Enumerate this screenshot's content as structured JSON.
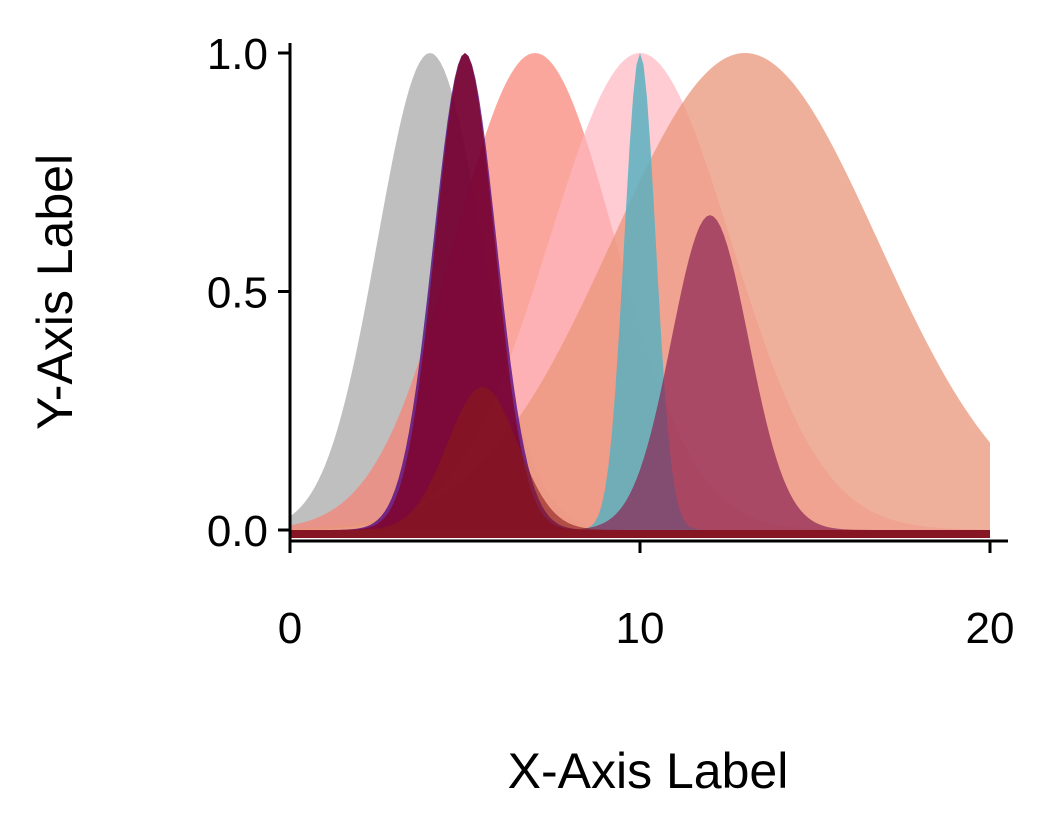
{
  "chart_data": {
    "type": "area",
    "title": "",
    "xlabel": "X-Axis Label",
    "ylabel": "Y-Axis Label",
    "xlim": [
      0,
      20
    ],
    "ylim": [
      0,
      1
    ],
    "x_ticks": [
      {
        "value": 0,
        "label": "0"
      },
      {
        "value": 10,
        "label": "10"
      },
      {
        "value": 20,
        "label": "20"
      }
    ],
    "y_ticks": [
      {
        "value": 0.0,
        "label": "0.0"
      },
      {
        "value": 0.5,
        "label": "0.5"
      },
      {
        "value": 1.0,
        "label": "1.0"
      }
    ],
    "grid": false,
    "legend": "none",
    "series": [
      {
        "shape": "gaussian",
        "mu": 4,
        "sigma": 1.5,
        "amplitude": 1.0,
        "color": "#a9a9a9",
        "opacity": 0.75
      },
      {
        "shape": "gaussian",
        "mu": 7,
        "sigma": 2.3,
        "amplitude": 1.0,
        "color": "#fa8072",
        "opacity": 0.7
      },
      {
        "shape": "gaussian",
        "mu": 10,
        "sigma": 2.6,
        "amplitude": 1.0,
        "color": "#ffb6c1",
        "opacity": 0.7
      },
      {
        "shape": "gaussian",
        "mu": 13,
        "sigma": 3.8,
        "amplitude": 1.0,
        "color": "#e9967a",
        "opacity": 0.75
      },
      {
        "shape": "gaussian",
        "mu": 5,
        "sigma": 0.9,
        "amplitude": 1.0,
        "color": "#4b0082",
        "opacity": 0.75
      },
      {
        "shape": "gaussian",
        "mu": 10,
        "sigma": 0.45,
        "amplitude": 1.0,
        "color": "#5bb0c0",
        "opacity": 0.85
      },
      {
        "shape": "gaussian",
        "mu": 12,
        "sigma": 1.1,
        "amplitude": 0.66,
        "color": "#8b2252",
        "opacity": 0.7
      },
      {
        "shape": "gaussian",
        "mu": 5,
        "sigma": 0.85,
        "amplitude": 1.0,
        "color": "#800020",
        "opacity": 0.75
      },
      {
        "shape": "gaussian",
        "mu": 5.5,
        "sigma": 1.0,
        "amplitude": 0.3,
        "color": "#8b1a1a",
        "opacity": 0.6
      }
    ]
  }
}
